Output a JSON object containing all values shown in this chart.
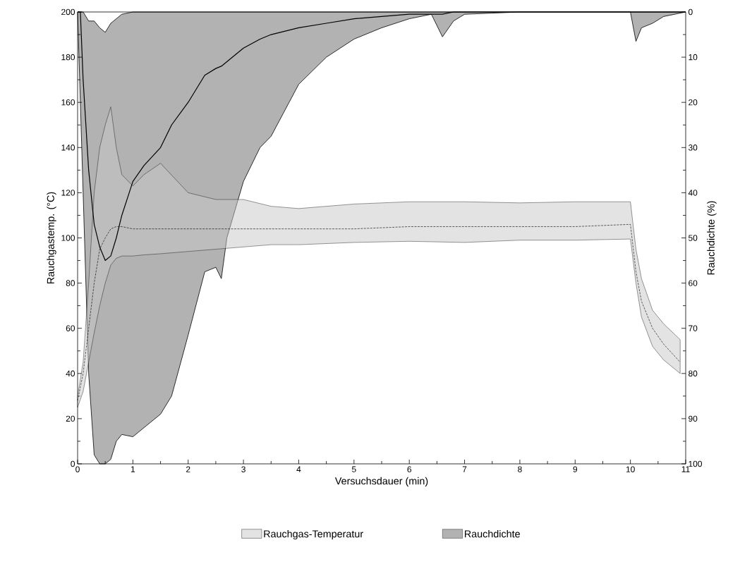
{
  "chart_data": {
    "type": "line",
    "xlabel": "Versuchsdauer (min)",
    "ylabel": "Rauchgastemp. (°C)",
    "y2label": "Rauchdichte (%)",
    "xlim": [
      0,
      11
    ],
    "xticks": [
      0,
      1,
      2,
      3,
      4,
      5,
      6,
      7,
      8,
      9,
      10,
      11
    ],
    "ylim": [
      0,
      200
    ],
    "yticks": [
      0,
      20,
      40,
      60,
      80,
      100,
      120,
      140,
      160,
      180,
      200
    ],
    "y2lim": [
      100,
      0
    ],
    "y2ticks": [
      0,
      10,
      20,
      30,
      40,
      50,
      60,
      70,
      80,
      90,
      100
    ],
    "legend": "bottom",
    "series": [
      {
        "name": "Rauchgas-Temperatur",
        "color": "#000000",
        "line_style": "dashed",
        "x": [
          0,
          0.1,
          0.2,
          0.3,
          0.4,
          0.5,
          0.6,
          0.7,
          0.8,
          1,
          1.2,
          1.5,
          2,
          2.5,
          3,
          3.5,
          4,
          5,
          6,
          7,
          8,
          9,
          10,
          10.1,
          10.2,
          10.4,
          10.6,
          10.9
        ],
        "values": [
          28,
          40,
          60,
          80,
          95,
          100,
          104,
          105,
          105,
          104,
          104,
          104,
          104,
          104,
          104,
          104,
          104,
          104,
          105,
          105,
          105,
          105,
          106,
          85,
          72,
          60,
          53,
          45
        ],
        "lower": [
          25,
          32,
          45,
          58,
          70,
          80,
          88,
          91,
          92,
          92,
          92.5,
          93,
          94,
          95,
          96,
          97,
          97,
          98,
          98.5,
          98,
          99,
          99,
          99.5,
          80,
          65,
          52,
          46,
          40
        ],
        "upper": [
          30,
          45,
          80,
          120,
          140,
          150,
          158,
          140,
          128,
          123,
          128,
          133,
          120,
          117,
          117,
          114,
          113,
          115,
          116,
          116,
          115.5,
          116,
          116,
          95,
          82,
          68,
          62,
          55
        ]
      },
      {
        "name": "Rauchdichte",
        "axis": "y2",
        "color": "#000000",
        "x": [
          0,
          0.05,
          0.1,
          0.2,
          0.3,
          0.4,
          0.5,
          0.6,
          0.7,
          0.8,
          1,
          1.2,
          1.5,
          1.7,
          2,
          2.3,
          2.5,
          2.6,
          2.7,
          3,
          3.3,
          3.5,
          4,
          4.5,
          5,
          5.5,
          6,
          6.4,
          6.6,
          6.8,
          7,
          8,
          9,
          10,
          10.1,
          10.2,
          10.4,
          10.6,
          11
        ],
        "values": [
          0,
          0,
          15,
          35,
          47,
          52,
          55,
          54,
          50,
          45,
          37.5,
          34,
          30,
          25,
          20,
          14,
          12.5,
          12,
          11,
          8,
          6,
          5,
          3.5,
          2.5,
          1.5,
          1,
          0.5,
          0.5,
          0.5,
          0,
          0,
          0,
          0,
          0,
          0,
          0,
          0,
          0,
          0
        ],
        "lower": [
          0,
          0,
          0,
          2,
          2,
          3.5,
          4.5,
          2.5,
          1.5,
          0.5,
          0,
          0,
          0,
          0,
          0,
          0,
          0,
          0,
          0,
          0,
          0,
          0,
          0,
          0,
          0,
          0,
          0,
          0,
          0,
          0,
          0,
          0,
          0,
          0,
          0,
          0,
          0,
          0,
          0
        ],
        "upper": [
          0,
          20,
          40,
          80,
          98,
          100,
          100,
          99,
          95,
          93.5,
          94,
          92,
          89,
          85,
          71.5,
          57.5,
          56.5,
          59,
          50,
          37.5,
          30,
          27.5,
          16,
          10,
          6,
          3.5,
          1.5,
          0.5,
          5.5,
          2,
          0.5,
          0,
          0,
          0,
          6.5,
          3.5,
          2.5,
          1,
          0
        ]
      }
    ]
  }
}
